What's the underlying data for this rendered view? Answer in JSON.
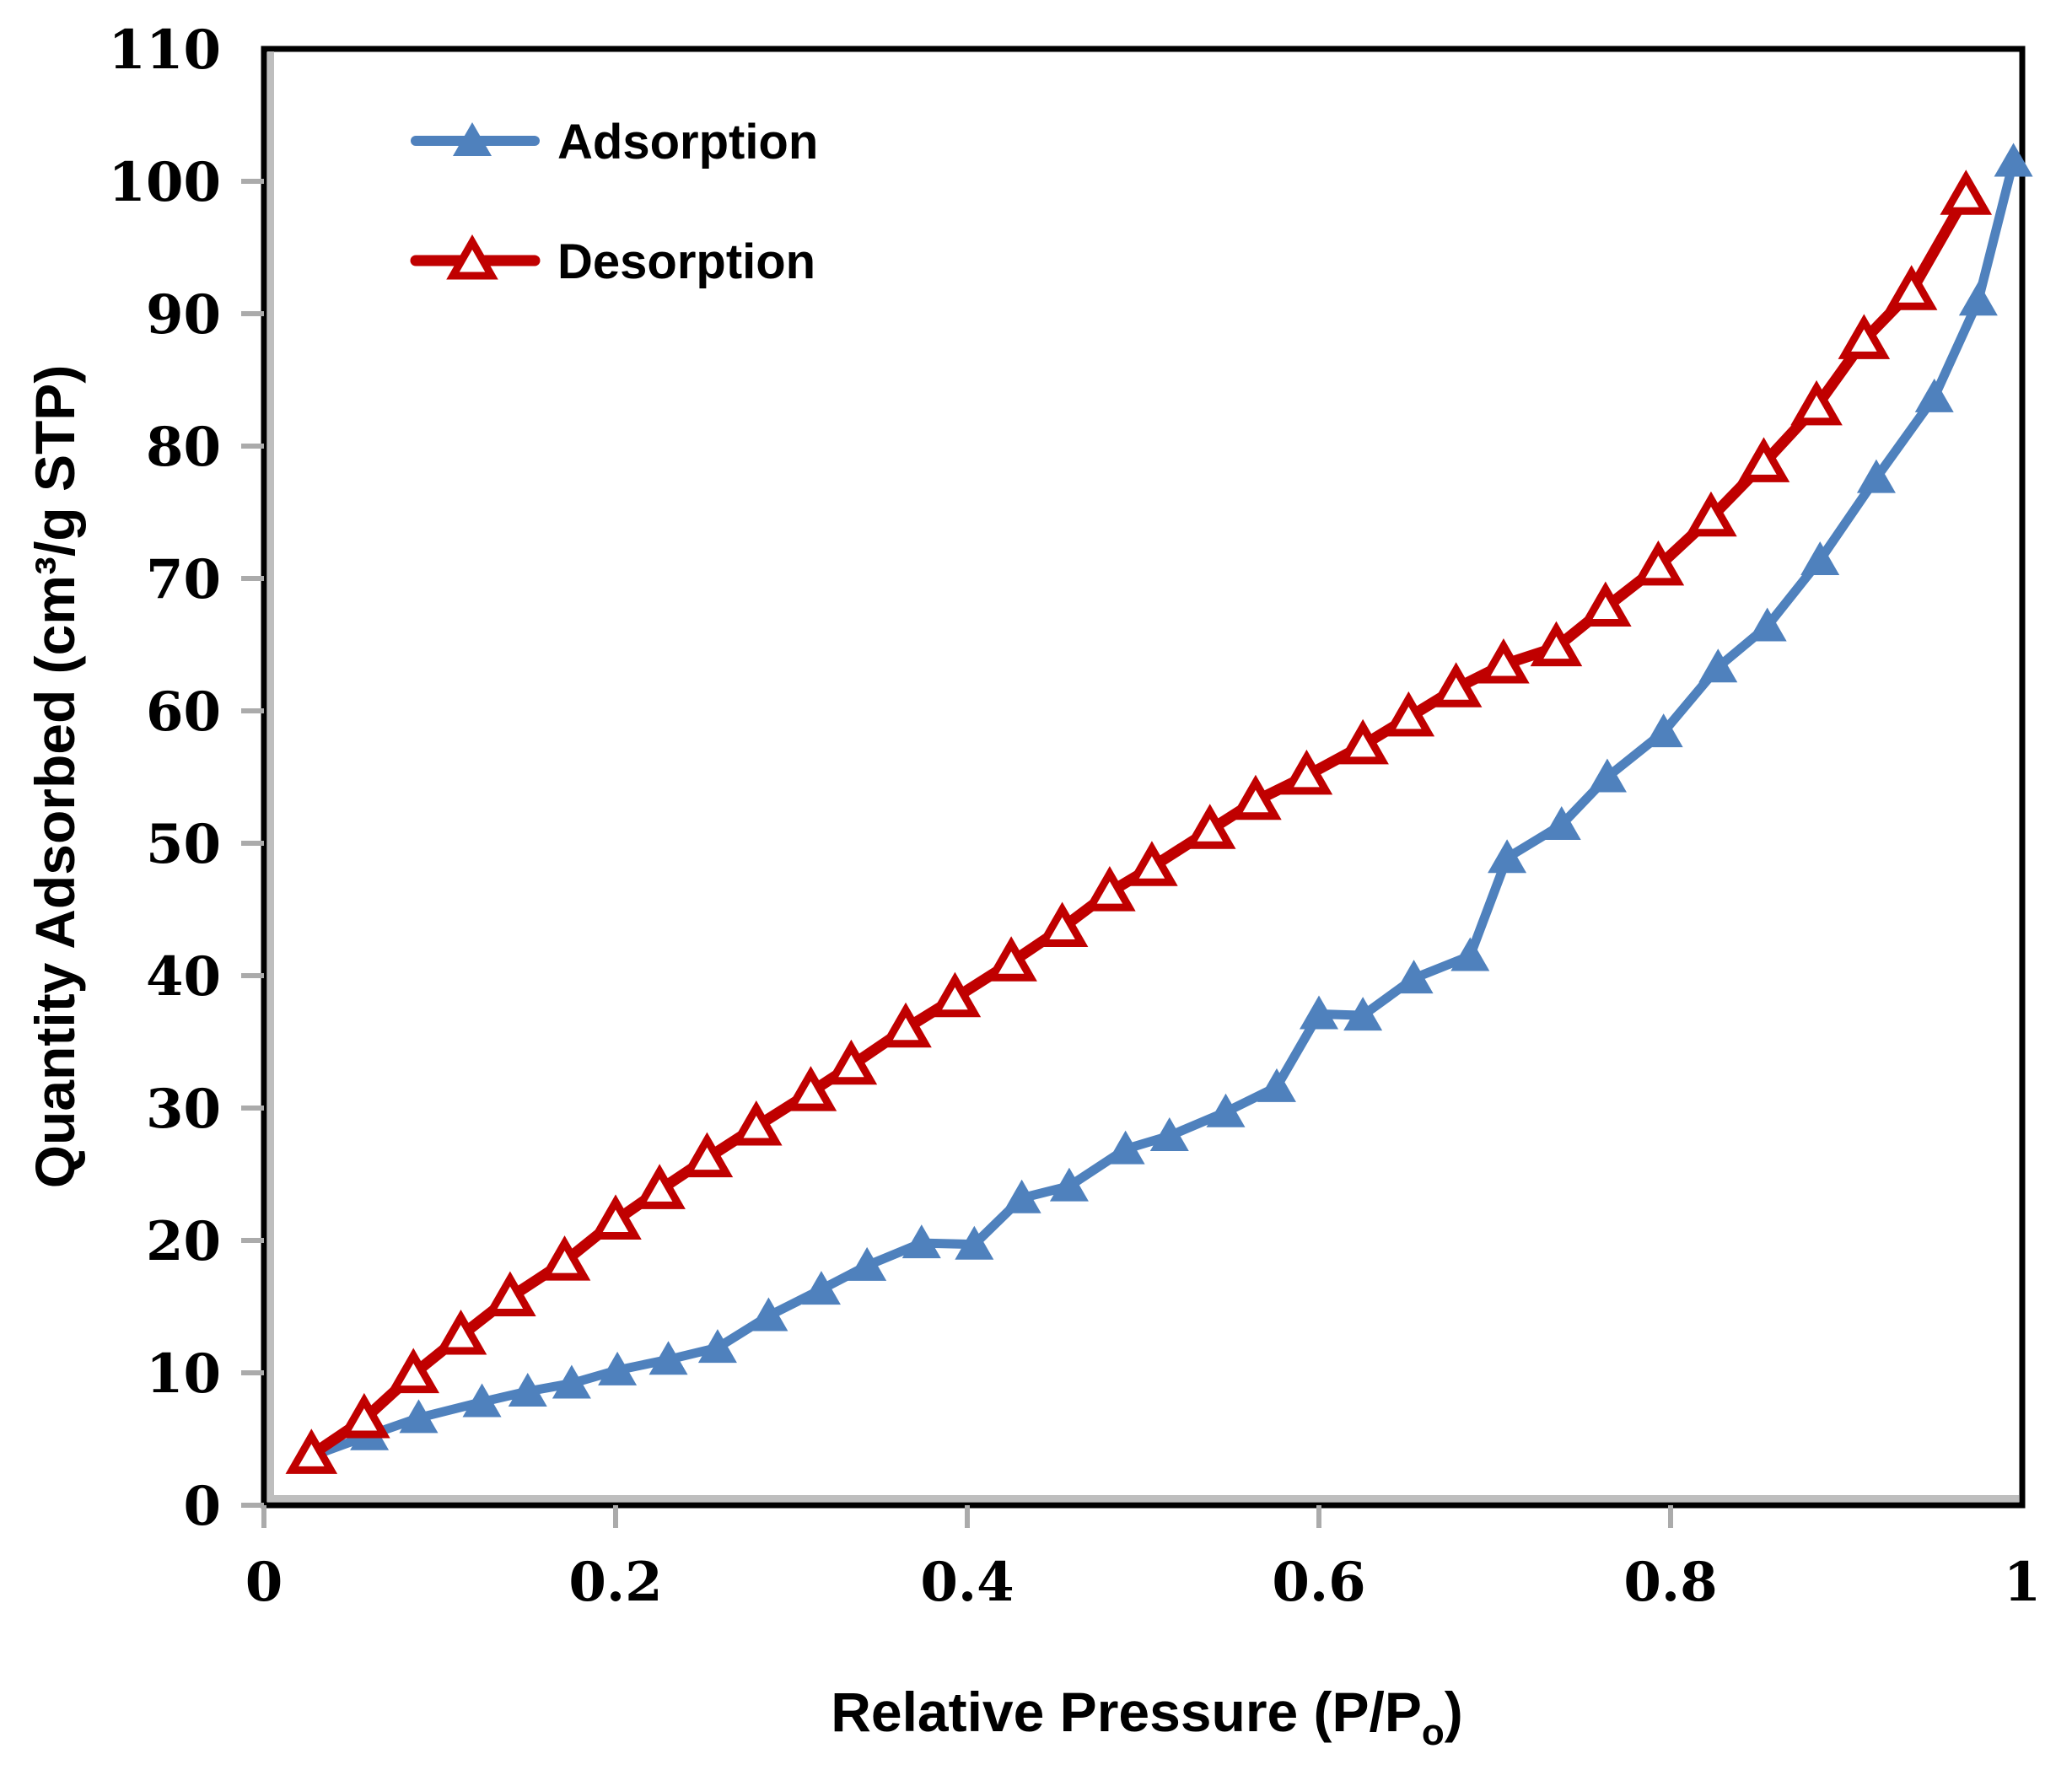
{
  "chart_data": {
    "type": "line",
    "title": "",
    "xlabel": "Relative Pressure (P/Po)",
    "xlabel_pre": "Relative Pressure (P/P",
    "xlabel_sub": "o",
    "xlabel_post": ")",
    "ylabel": "Quantity Adsorbed (cm³/g STP)",
    "xlim": [
      0,
      1
    ],
    "ylim": [
      0,
      110
    ],
    "xticks": [
      0,
      0.2,
      0.4,
      0.6,
      0.8,
      1
    ],
    "xtick_labels": [
      "0",
      "0.2",
      "0.4",
      "0.6",
      "0.8",
      "1"
    ],
    "yticks": [
      0,
      10,
      20,
      30,
      40,
      50,
      60,
      70,
      80,
      90,
      100,
      110
    ],
    "ytick_labels": [
      "0",
      "10",
      "20",
      "30",
      "40",
      "50",
      "60",
      "70",
      "80",
      "90",
      "100",
      "110"
    ],
    "grid": false,
    "legend_position": "top-left-inside",
    "series": [
      {
        "name": "Adsorption",
        "color": "#4F81BD",
        "marker": "triangle-filled",
        "x": [
          0.027,
          0.06,
          0.088,
          0.124,
          0.15,
          0.175,
          0.201,
          0.23,
          0.258,
          0.287,
          0.317,
          0.343,
          0.374,
          0.404,
          0.431,
          0.458,
          0.49,
          0.515,
          0.547,
          0.576,
          0.6,
          0.625,
          0.654,
          0.686,
          0.707,
          0.738,
          0.764,
          0.796,
          0.827,
          0.855,
          0.885,
          0.917,
          0.95,
          0.975,
          0.995
        ],
        "y": [
          3.7,
          5.3,
          6.6,
          7.8,
          8.6,
          9.2,
          10.2,
          11.0,
          11.9,
          14.3,
          16.3,
          18.1,
          19.8,
          19.7,
          23.2,
          24.1,
          26.9,
          27.9,
          29.7,
          31.6,
          37.1,
          37.0,
          39.8,
          41.5,
          48.9,
          51.4,
          55.0,
          58.4,
          63.3,
          66.4,
          71.4,
          77.6,
          83.7,
          91.0,
          101.5
        ]
      },
      {
        "name": "Desorption",
        "color": "#C00000",
        "marker": "triangle-open",
        "x": [
          0.027,
          0.057,
          0.085,
          0.112,
          0.14,
          0.171,
          0.2,
          0.225,
          0.252,
          0.28,
          0.311,
          0.334,
          0.365,
          0.393,
          0.425,
          0.454,
          0.481,
          0.505,
          0.538,
          0.564,
          0.593,
          0.625,
          0.651,
          0.678,
          0.705,
          0.735,
          0.763,
          0.793,
          0.823,
          0.853,
          0.883,
          0.91,
          0.937,
          0.968
        ],
        "y": [
          3.8,
          6.5,
          9.9,
          12.8,
          15.7,
          18.4,
          21.5,
          23.8,
          26.2,
          28.6,
          31.2,
          33.2,
          36.0,
          38.3,
          41.0,
          43.6,
          46.3,
          48.2,
          51.0,
          53.2,
          55.1,
          57.4,
          59.5,
          61.7,
          63.5,
          64.8,
          67.8,
          70.9,
          74.6,
          78.7,
          83.0,
          88.0,
          91.7,
          98.9
        ]
      }
    ]
  },
  "colors": {
    "adsorption_blue": "#4F81BD",
    "desorption_red": "#C00000",
    "axis_gray": "#ABABAB",
    "frame_black": "#000000",
    "text_black": "#000000",
    "background": "#FFFFFF"
  }
}
